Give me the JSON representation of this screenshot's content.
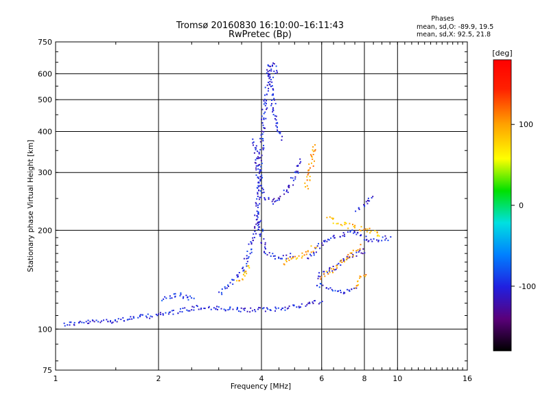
{
  "chart_data": {
    "type": "scatter",
    "title": "Tromsø 20160830 16:10:00–16:11:43",
    "subtitle": "RwPretec (Bp)",
    "xlabel": "Frequency [MHz]",
    "ylabel": "Stationary phase Virtual Height [km]",
    "x_scale": "log2",
    "y_scale": "log",
    "xlim": [
      1,
      16
    ],
    "ylim": [
      75,
      750
    ],
    "x_ticks": [
      1,
      2,
      4,
      6,
      8,
      10,
      16
    ],
    "y_ticks": [
      75,
      100,
      200,
      300,
      400,
      500,
      600,
      750
    ],
    "grid": true,
    "phase_legend": {
      "title": "Phases",
      "line_o": "mean, sd,O: -89.9, 19.5",
      "line_x": "mean, sd,X:  92.5, 21.8"
    },
    "colorbar": {
      "label": "[deg]",
      "ticks": [
        100,
        0,
        -100
      ],
      "range": [
        -180,
        180
      ],
      "colors": [
        "#000000",
        "#5a007a",
        "#2020e0",
        "#0080ff",
        "#00e0e0",
        "#00e000",
        "#ffff00",
        "#ffa000",
        "#ff2000",
        "#ff0000"
      ]
    },
    "series": [
      {
        "name": "O",
        "segments": [
          {
            "x": [
              1.05,
              1.5,
              2.0,
              2.6,
              3.4,
              4.2,
              5.0,
              6.0
            ],
            "y": [
              104,
              107,
              111,
              117,
              115,
              115,
              118,
              122
            ],
            "phase": -100
          },
          {
            "x": [
              2.05,
              2.25,
              2.55
            ],
            "y": [
              124,
              128,
              124
            ],
            "phase": -90
          },
          {
            "x": [
              3.0,
              3.5,
              3.85,
              3.95,
              4.0,
              4.1,
              4.2,
              4.3,
              4.4
            ],
            "y": [
              130,
              150,
              200,
              300,
              400,
              500,
              620,
              650,
              600
            ],
            "phase": -100
          },
          {
            "x": [
              3.8,
              3.9,
              4.0,
              4.3,
              4.5,
              4.8,
              5.2
            ],
            "y": [
              380,
              300,
              255,
              245,
              250,
              270,
              330
            ],
            "phase": -105
          },
          {
            "x": [
              4.2,
              4.3,
              4.4,
              4.6
            ],
            "y": [
              640,
              500,
              420,
              380
            ],
            "phase": -100
          },
          {
            "x": [
              3.85,
              4.1,
              4.5,
              4.9
            ],
            "y": [
              230,
              170,
              165,
              170
            ],
            "phase": -100
          },
          {
            "x": [
              5.5,
              6.2,
              7.0,
              7.6,
              8.2,
              8.8,
              9.5
            ],
            "y": [
              165,
              190,
              195,
              200,
              185,
              190,
              190
            ],
            "phase": -100
          },
          {
            "x": [
              5.8,
              6.5,
              7.4,
              8.1
            ],
            "y": [
              145,
              155,
              170,
              175
            ],
            "phase": -110
          },
          {
            "x": [
              5.8,
              6.5,
              7.0,
              7.6
            ],
            "y": [
              138,
              132,
              130,
              133
            ],
            "phase": -95
          },
          {
            "x": [
              7.6,
              8.0,
              8.4
            ],
            "y": [
              230,
              240,
              260
            ],
            "phase": -105
          }
        ]
      },
      {
        "name": "X",
        "segments": [
          {
            "x": [
              4.6,
              5.0,
              5.4,
              5.8
            ],
            "y": [
              160,
              165,
              172,
              180
            ],
            "phase": 95
          },
          {
            "x": [
              5.4,
              5.6,
              5.7
            ],
            "y": [
              270,
              330,
              370
            ],
            "phase": 100
          },
          {
            "x": [
              6.2,
              6.8,
              7.5,
              8.3,
              9.0
            ],
            "y": [
              220,
              210,
              205,
              200,
              195
            ],
            "phase": 90
          },
          {
            "x": [
              6.0,
              6.8,
              7.8
            ],
            "y": [
              145,
              160,
              180
            ],
            "phase": 95
          },
          {
            "x": [
              3.4,
              3.7
            ],
            "y": [
              140,
              160
            ],
            "phase": 90
          },
          {
            "x": [
              7.5,
              8.0
            ],
            "y": [
              135,
              150
            ],
            "phase": 100
          }
        ]
      }
    ]
  }
}
